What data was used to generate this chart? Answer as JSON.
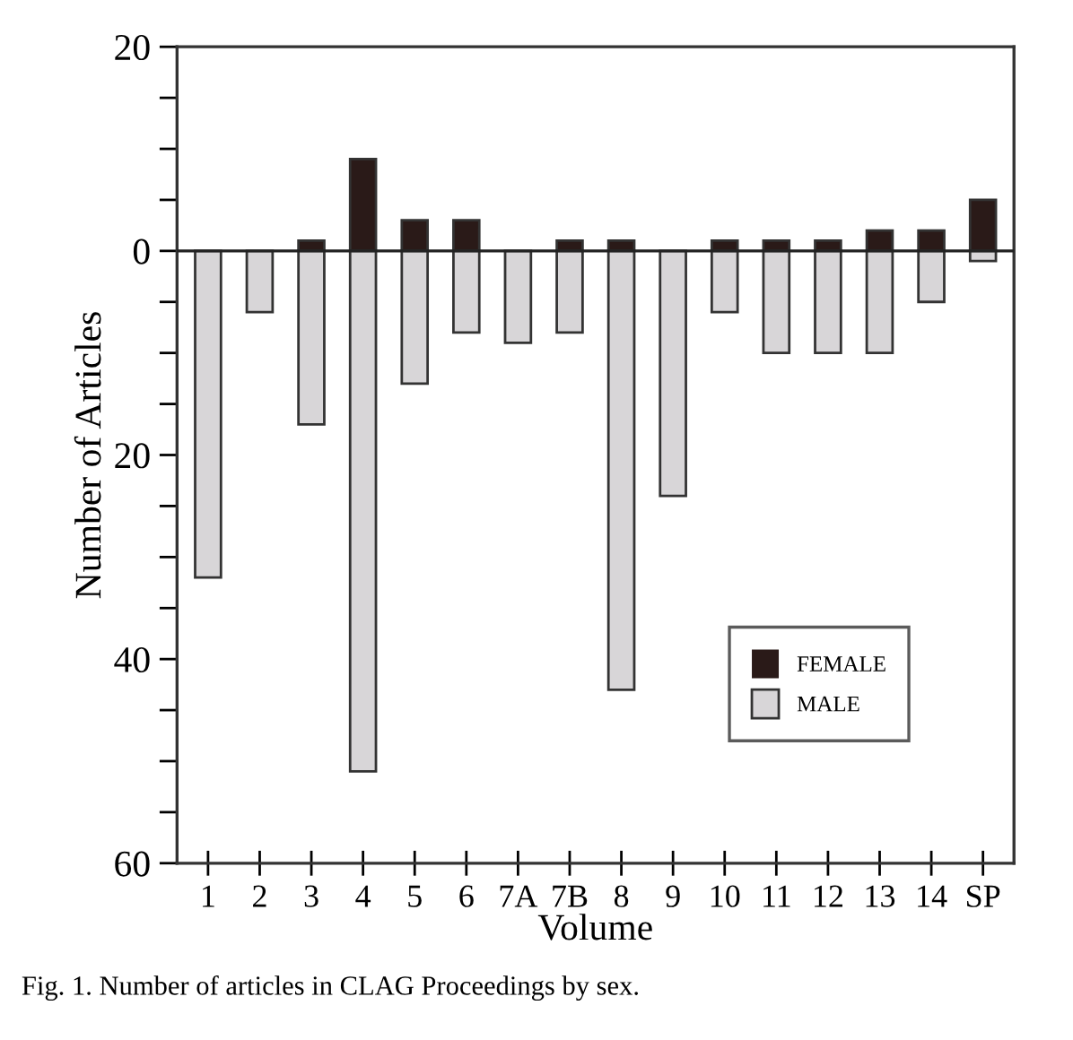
{
  "chart_data": {
    "type": "bar",
    "categories": [
      "1",
      "2",
      "3",
      "4",
      "5",
      "6",
      "7A",
      "7B",
      "8",
      "9",
      "10",
      "11",
      "12",
      "13",
      "14",
      "SP"
    ],
    "series": [
      {
        "name": "FEMALE",
        "color": "#2a1a18",
        "values": [
          0,
          0,
          1,
          9,
          3,
          3,
          0,
          1,
          1,
          0,
          1,
          1,
          1,
          2,
          2,
          5
        ]
      },
      {
        "name": "MALE",
        "color": "#d8d6d8",
        "values": [
          -32,
          -6,
          -17,
          -51,
          -13,
          -8,
          -9,
          -8,
          -43,
          -24,
          -6,
          -10,
          -10,
          -10,
          -5,
          -1
        ]
      }
    ],
    "xlabel": "Volume",
    "ylabel": "Number of Articles",
    "ylim": [
      -60,
      20
    ],
    "yticks": [
      {
        "value": -60,
        "label": "60"
      },
      {
        "value": -55,
        "label": null
      },
      {
        "value": -50,
        "label": null
      },
      {
        "value": -45,
        "label": null
      },
      {
        "value": -40,
        "label": "40"
      },
      {
        "value": -35,
        "label": null
      },
      {
        "value": -30,
        "label": null
      },
      {
        "value": -25,
        "label": null
      },
      {
        "value": -20,
        "label": "20"
      },
      {
        "value": -15,
        "label": null
      },
      {
        "value": -10,
        "label": null
      },
      {
        "value": -5,
        "label": null
      },
      0,
      {
        "value": 5,
        "label": null
      },
      {
        "value": 10,
        "label": null
      },
      {
        "value": 15,
        "label": null
      },
      20
    ],
    "ref_lines": [
      {
        "axis": "y",
        "value": 0,
        "label": null,
        "color": "#222222"
      }
    ],
    "annotations": [
      "Fig. 1. Number of articles in CLAG Proceedings by sex."
    ],
    "legend": "bottom right",
    "grid": false,
    "stacked": true
  }
}
